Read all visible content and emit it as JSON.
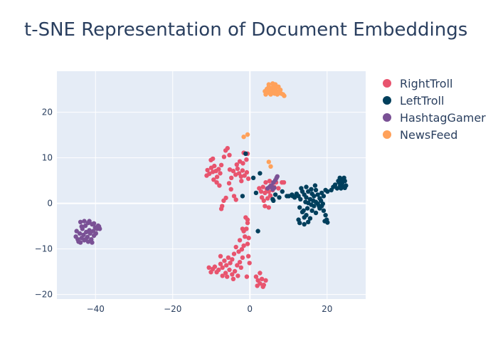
{
  "chart_data": {
    "type": "scatter",
    "title": "t-SNE Representation of Document Embeddings",
    "xlabel": "",
    "ylabel": "",
    "xlim": [
      -50,
      30
    ],
    "ylim": [
      -21,
      29
    ],
    "x_ticks": [
      -40,
      -20,
      0,
      20
    ],
    "y_ticks": [
      -20,
      -10,
      0,
      10,
      20
    ],
    "grid": true,
    "legend_position": "top-right",
    "plot_bg": "#E5ECF6",
    "grid_color": "#ffffff",
    "series": [
      {
        "name": "RightTroll",
        "color": "#EF553B",
        "display_color": "#E8546E",
        "points": [
          [
            -11,
            7.3
          ],
          [
            -10.5,
            6.5
          ],
          [
            -10,
            7.8
          ],
          [
            -9.6,
            6.9
          ],
          [
            -9.2,
            8.2
          ],
          [
            -8.8,
            7.1
          ],
          [
            -8.5,
            5.8
          ],
          [
            -8.1,
            7.5
          ],
          [
            -7.7,
            6.6
          ],
          [
            -7.4,
            8.4
          ],
          [
            -11.2,
            6.1
          ],
          [
            -10.1,
            9.5
          ],
          [
            -9.4,
            5.2
          ],
          [
            -8.6,
            4.6
          ],
          [
            -7.9,
            3.9
          ],
          [
            -9.6,
            9.8
          ],
          [
            -6.3,
            11.6
          ],
          [
            -5.8,
            12.1
          ],
          [
            -5.3,
            10.6
          ],
          [
            -6.7,
            10.2
          ],
          [
            -4.3,
            7.1
          ],
          [
            -3.7,
            6.3
          ],
          [
            -3.2,
            7.6
          ],
          [
            -2.8,
            6.6
          ],
          [
            -2.3,
            5.9
          ],
          [
            -1.9,
            7.2
          ],
          [
            -1.4,
            6.1
          ],
          [
            -0.8,
            6.8
          ],
          [
            -3.4,
            8.5
          ],
          [
            -2.6,
            9.2
          ],
          [
            -1.8,
            8.8
          ],
          [
            -0.9,
            9.6
          ],
          [
            -4.8,
            5.6
          ],
          [
            -5.2,
            7.4
          ],
          [
            -2.2,
            4.9
          ],
          [
            -0.4,
            5.4
          ],
          [
            -6.2,
            1.2
          ],
          [
            -6.8,
            0.6
          ],
          [
            -7.2,
            -0.6
          ],
          [
            -7.4,
            -1.2
          ],
          [
            -5.4,
            4.4
          ],
          [
            -4.9,
            3.1
          ],
          [
            -4.1,
            1.6
          ],
          [
            -3.6,
            0.8
          ],
          [
            -1.6,
            11.1
          ],
          [
            -0.6,
            10.9
          ],
          [
            2.4,
            3.3
          ],
          [
            2.9,
            2.6
          ],
          [
            3.4,
            3.6
          ],
          [
            3.9,
            2.3
          ],
          [
            4.4,
            3.1
          ],
          [
            4.9,
            2.6
          ],
          [
            5.4,
            3.9
          ],
          [
            5.9,
            2.9
          ],
          [
            6.3,
            3.6
          ],
          [
            3.1,
            1.3
          ],
          [
            3.6,
            0.6
          ],
          [
            4.6,
            1.1
          ],
          [
            5.3,
            1.7
          ],
          [
            4.1,
            4.6
          ],
          [
            5.1,
            4.9
          ],
          [
            6.8,
            4.6
          ],
          [
            7.4,
            3.3
          ],
          [
            8.3,
            4.6
          ],
          [
            8.8,
            4.6
          ],
          [
            3.9,
            -0.6
          ],
          [
            4.9,
            -0.9
          ],
          [
            -1.1,
            -3.1
          ],
          [
            -0.6,
            -4.3
          ],
          [
            -0.9,
            -5.6
          ],
          [
            -1.6,
            -6.1
          ],
          [
            -1.3,
            -7.3
          ],
          [
            -0.3,
            -7.6
          ],
          [
            -0.6,
            -8.9
          ],
          [
            -1.6,
            -9.3
          ],
          [
            -2.1,
            -10.1
          ],
          [
            -2.9,
            -10.6
          ],
          [
            -3.6,
            -9.6
          ],
          [
            -4.1,
            -11.1
          ],
          [
            -4.6,
            -12.3
          ],
          [
            -5.1,
            -13.1
          ],
          [
            -5.6,
            -11.9
          ],
          [
            -6.1,
            -13.6
          ],
          [
            -6.6,
            -12.6
          ],
          [
            -7.1,
            -14.1
          ],
          [
            -7.6,
            -13.3
          ],
          [
            -8.1,
            -14.6
          ],
          [
            -8.6,
            -15.1
          ],
          [
            -9.1,
            -13.9
          ],
          [
            -9.6,
            -14.4
          ],
          [
            -10.1,
            -15.1
          ],
          [
            -10.6,
            -14.1
          ],
          [
            -6.3,
            -15.3
          ],
          [
            -5.3,
            -14.6
          ],
          [
            -4.6,
            -15.6
          ],
          [
            -3.9,
            -14.9
          ],
          [
            -3.3,
            -13.6
          ],
          [
            -2.6,
            -12.9
          ],
          [
            -1.9,
            -11.9
          ],
          [
            -2.3,
            -14.1
          ],
          [
            -3.1,
            -15.9
          ],
          [
            -4.3,
            -16.6
          ],
          [
            -5.9,
            -16.1
          ],
          [
            -7.1,
            -15.9
          ],
          [
            -0.4,
            -11.6
          ],
          [
            -0.1,
            -13.1
          ],
          [
            -0.8,
            -16.1
          ],
          [
            1.6,
            -16.1
          ],
          [
            2.1,
            -16.9
          ],
          [
            2.6,
            -17.6
          ],
          [
            3.1,
            -16.6
          ],
          [
            3.6,
            -17.9
          ],
          [
            4.1,
            -16.9
          ],
          [
            1.9,
            -18.1
          ],
          [
            3.4,
            -18.3
          ],
          [
            2.6,
            -15.3
          ],
          [
            -1.9,
            -5.6
          ],
          [
            -2.6,
            -8.1
          ],
          [
            -0.6,
            -3.6
          ],
          [
            -7.6,
            -11.6
          ]
        ]
      },
      {
        "name": "LeftTroll",
        "color": "#003F5C",
        "display_color": "#003F5C",
        "points": [
          [
            -1.1,
            10.9
          ],
          [
            0.9,
            5.6
          ],
          [
            2.6,
            6.6
          ],
          [
            -1.9,
            1.6
          ],
          [
            2.1,
            -6.1
          ],
          [
            1.6,
            2.3
          ],
          [
            5.9,
            0.9
          ],
          [
            6.6,
            1.9
          ],
          [
            7.6,
            1.3
          ],
          [
            8.4,
            2.6
          ],
          [
            10.1,
            1.6
          ],
          [
            10.9,
            1.9
          ],
          [
            11.6,
            1.3
          ],
          [
            12.1,
            2.1
          ],
          [
            12.6,
            1.6
          ],
          [
            13.1,
            0.9
          ],
          [
            13.6,
            2.6
          ],
          [
            14.1,
            1.9
          ],
          [
            14.6,
            1.3
          ],
          [
            15.1,
            2.6
          ],
          [
            15.6,
            0.9
          ],
          [
            16.1,
            2.1
          ],
          [
            16.6,
            1.6
          ],
          [
            17.1,
            2.9
          ],
          [
            17.6,
            1.9
          ],
          [
            18.1,
            1.1
          ],
          [
            18.6,
            2.3
          ],
          [
            19.1,
            1.6
          ],
          [
            19.6,
            2.9
          ],
          [
            20.1,
            2.6
          ],
          [
            13.3,
            3.3
          ],
          [
            14.6,
            3.6
          ],
          [
            15.9,
            3.1
          ],
          [
            16.9,
            3.9
          ],
          [
            12.9,
            -0.9
          ],
          [
            13.6,
            -1.9
          ],
          [
            14.1,
            -3.1
          ],
          [
            14.6,
            -2.6
          ],
          [
            15.1,
            -4.1
          ],
          [
            15.6,
            -3.3
          ],
          [
            16.1,
            -1.6
          ],
          [
            16.6,
            -0.6
          ],
          [
            17.1,
            -2.1
          ],
          [
            17.6,
            -0.1
          ],
          [
            18.1,
            -1.1
          ],
          [
            18.6,
            -0.6
          ],
          [
            19.1,
            -1.6
          ],
          [
            19.6,
            -2.6
          ],
          [
            19.9,
            -3.6
          ],
          [
            20.1,
            -4.2
          ],
          [
            19.4,
            -3.9
          ],
          [
            18.9,
            -0.1
          ],
          [
            18.4,
            0.6
          ],
          [
            17.9,
            -0.6
          ],
          [
            17.1,
            0.3
          ],
          [
            16.4,
            0.6
          ],
          [
            15.9,
            -0.3
          ],
          [
            15.1,
            0.1
          ],
          [
            14.4,
            0.3
          ],
          [
            14.9,
            -1.1
          ],
          [
            13.9,
            -1.6
          ],
          [
            12.6,
            -3.6
          ],
          [
            12.9,
            -4.3
          ],
          [
            14.1,
            -4.6
          ],
          [
            21.1,
            2.9
          ],
          [
            21.6,
            3.6
          ],
          [
            22.1,
            4.1
          ],
          [
            22.6,
            3.3
          ],
          [
            23.1,
            4.6
          ],
          [
            23.4,
            3.9
          ],
          [
            23.6,
            5.1
          ],
          [
            23.9,
            4.4
          ],
          [
            24.1,
            3.6
          ],
          [
            24.4,
            5.6
          ],
          [
            24.6,
            4.9
          ],
          [
            24.9,
            3.9
          ],
          [
            23.3,
            5.6
          ],
          [
            22.9,
            4.9
          ],
          [
            24.1,
            5.1
          ],
          [
            24.6,
            3.4
          ],
          [
            23.6,
            3.3
          ],
          [
            11.1,
            1.6
          ],
          [
            9.6,
            1.6
          ],
          [
            6.1,
            0.6
          ]
        ]
      },
      {
        "name": "HashtagGamer",
        "color": "#7A5195",
        "display_color": "#7A5195",
        "points": [
          [
            -45.1,
            -7.3
          ],
          [
            -44.6,
            -7.9
          ],
          [
            -44.1,
            -6.6
          ],
          [
            -43.6,
            -7.6
          ],
          [
            -43.9,
            -8.6
          ],
          [
            -43.4,
            -5.6
          ],
          [
            -43.1,
            -6.9
          ],
          [
            -42.9,
            -8.1
          ],
          [
            -42.6,
            -4.9
          ],
          [
            -42.4,
            -6.3
          ],
          [
            -42.1,
            -7.4
          ],
          [
            -41.9,
            -8.4
          ],
          [
            -41.6,
            -5.9
          ],
          [
            -41.4,
            -6.6
          ],
          [
            -41.1,
            -7.9
          ],
          [
            -40.9,
            -4.6
          ],
          [
            -40.6,
            -6.1
          ],
          [
            -40.4,
            -7.1
          ],
          [
            -40.1,
            -5.3
          ],
          [
            -39.9,
            -6.6
          ],
          [
            -39.6,
            -5.6
          ],
          [
            -39.3,
            -4.9
          ],
          [
            -39.1,
            -5.1
          ],
          [
            -38.9,
            -5.6
          ],
          [
            -43.9,
            -4.1
          ],
          [
            -42.9,
            -3.9
          ],
          [
            -41.9,
            -4.3
          ],
          [
            -40.9,
            -8.6
          ],
          [
            -44.9,
            -6.1
          ],
          [
            -44.4,
            -8.4
          ],
          [
            -43.6,
            -5.1
          ],
          [
            -41.6,
            -3.9
          ],
          [
            -42.6,
            -7.9
          ],
          [
            -40.4,
            -4.4
          ],
          [
            4.6,
            3.3
          ],
          [
            5.1,
            3.6
          ],
          [
            5.6,
            3.9
          ],
          [
            6.1,
            4.6
          ],
          [
            6.6,
            5.1
          ],
          [
            6.9,
            5.6
          ],
          [
            7.1,
            5.9
          ],
          [
            6.3,
            3.4
          ],
          [
            5.9,
            3.1
          ]
        ]
      },
      {
        "name": "NewsFeed",
        "color": "#FFA600",
        "display_color": "#FFA15A",
        "points": [
          [
            3.9,
            24.6
          ],
          [
            4.1,
            23.9
          ],
          [
            4.4,
            25.1
          ],
          [
            4.6,
            24.3
          ],
          [
            4.9,
            25.6
          ],
          [
            5.1,
            24.9
          ],
          [
            5.4,
            23.9
          ],
          [
            5.6,
            25.3
          ],
          [
            5.9,
            24.6
          ],
          [
            6.1,
            25.9
          ],
          [
            6.4,
            24.1
          ],
          [
            6.6,
            25.1
          ],
          [
            6.9,
            24.6
          ],
          [
            7.1,
            23.9
          ],
          [
            7.4,
            25.6
          ],
          [
            7.6,
            24.3
          ],
          [
            7.9,
            24.9
          ],
          [
            8.1,
            24.1
          ],
          [
            8.6,
            23.9
          ],
          [
            8.9,
            23.6
          ],
          [
            4.9,
            26.1
          ],
          [
            5.9,
            26.3
          ],
          [
            6.6,
            26.1
          ],
          [
            5.3,
            24.1
          ],
          [
            6.9,
            25.4
          ],
          [
            -1.6,
            14.6
          ],
          [
            -0.6,
            15.1
          ],
          [
            4.9,
            9.1
          ],
          [
            5.4,
            8.1
          ]
        ]
      }
    ]
  }
}
